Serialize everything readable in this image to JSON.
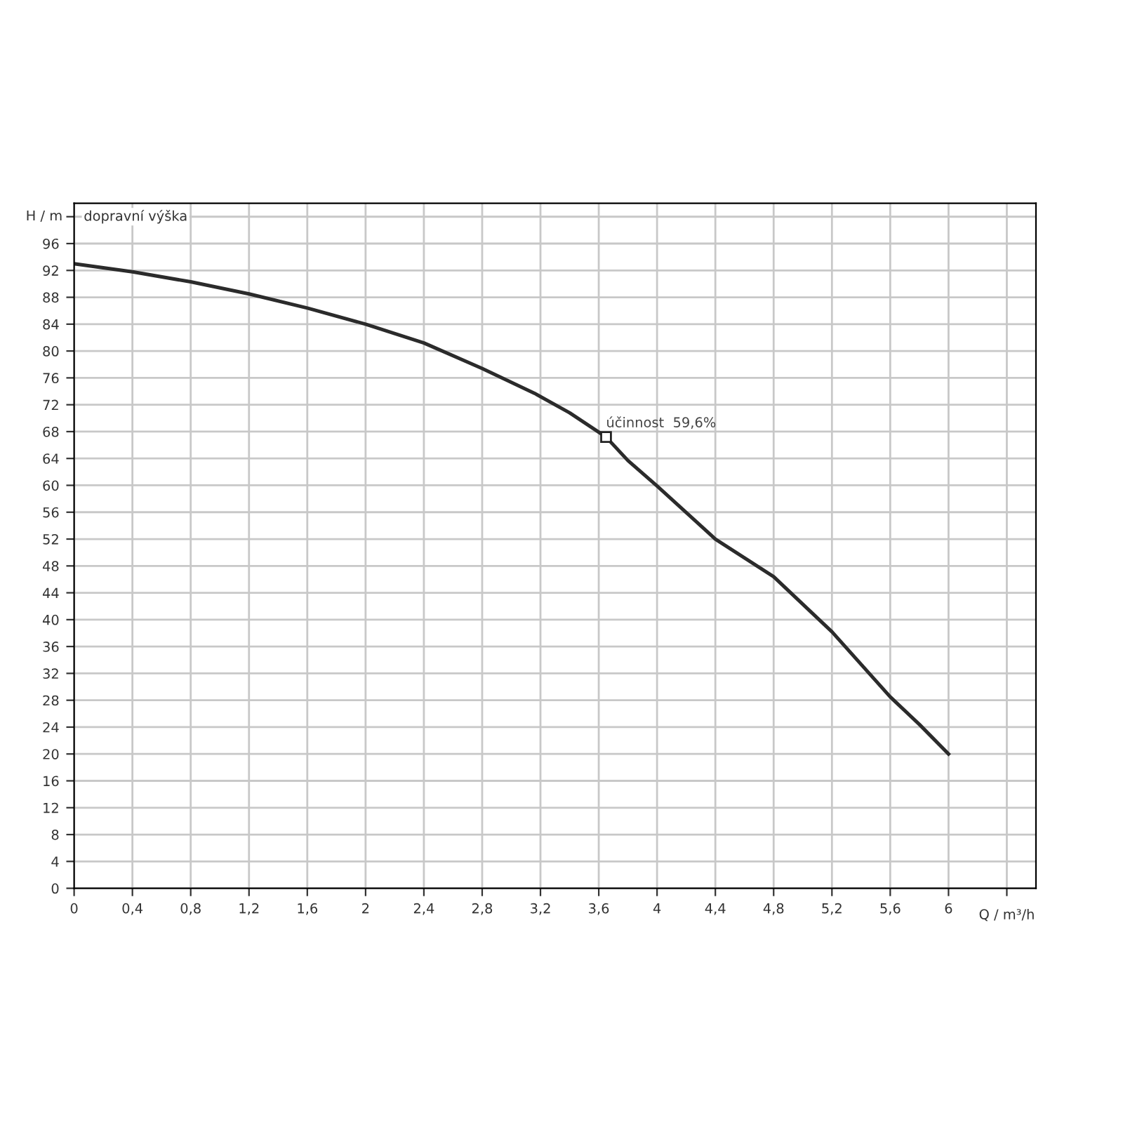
{
  "chart_data": {
    "type": "line",
    "xlabel": "Q / m³/h",
    "ylabel": "H / m",
    "annotations": [
      "dopravní výška",
      {
        "text": "účinnost  59,6%",
        "x": 3.65,
        "y": 67.2
      }
    ],
    "x": [
      0,
      0.4,
      0.8,
      1.2,
      1.6,
      2.0,
      2.4,
      2.8,
      3.16,
      3.4,
      3.65,
      3.8,
      4.0,
      4.4,
      4.6,
      4.8,
      5.2,
      5.6,
      5.8,
      6.0
    ],
    "series": [
      {
        "color": "#2b2b2b",
        "values": [
          93,
          91.8,
          90.3,
          88.5,
          86.4,
          84.0,
          81.2,
          77.4,
          73.7,
          70.8,
          67.2,
          63.7,
          59.9,
          52.0,
          49.2,
          46.4,
          38.2,
          28.5,
          24.4,
          20
        ]
      }
    ],
    "xlim": [
      0,
      6.6
    ],
    "ylim": [
      0,
      102
    ],
    "xticks": [
      0,
      {
        "value": 0.4,
        "label": "0,4"
      },
      {
        "value": 0.8,
        "label": "0,8"
      },
      {
        "value": 1.2,
        "label": "1,2"
      },
      {
        "value": 1.6,
        "label": "1,6"
      },
      2,
      {
        "value": 2.4,
        "label": "2,4"
      },
      {
        "value": 2.8,
        "label": "2,8"
      },
      {
        "value": 3.2,
        "label": "3,2"
      },
      {
        "value": 3.6,
        "label": "3,6"
      },
      4,
      {
        "value": 4.4,
        "label": "4,4"
      },
      {
        "value": 4.8,
        "label": "4,8"
      },
      {
        "value": 5.2,
        "label": "5,2"
      },
      {
        "value": 5.6,
        "label": "5,6"
      },
      6,
      {
        "value": 6.4,
        "label": null
      }
    ],
    "yticks": [
      0,
      4,
      8,
      12,
      16,
      20,
      24,
      28,
      32,
      36,
      40,
      44,
      48,
      52,
      56,
      60,
      64,
      68,
      72,
      76,
      80,
      84,
      88,
      92,
      96,
      {
        "value": 100,
        "label": null
      }
    ],
    "grid": true,
    "legend": false,
    "marker": "none",
    "line_style": "solid"
  }
}
